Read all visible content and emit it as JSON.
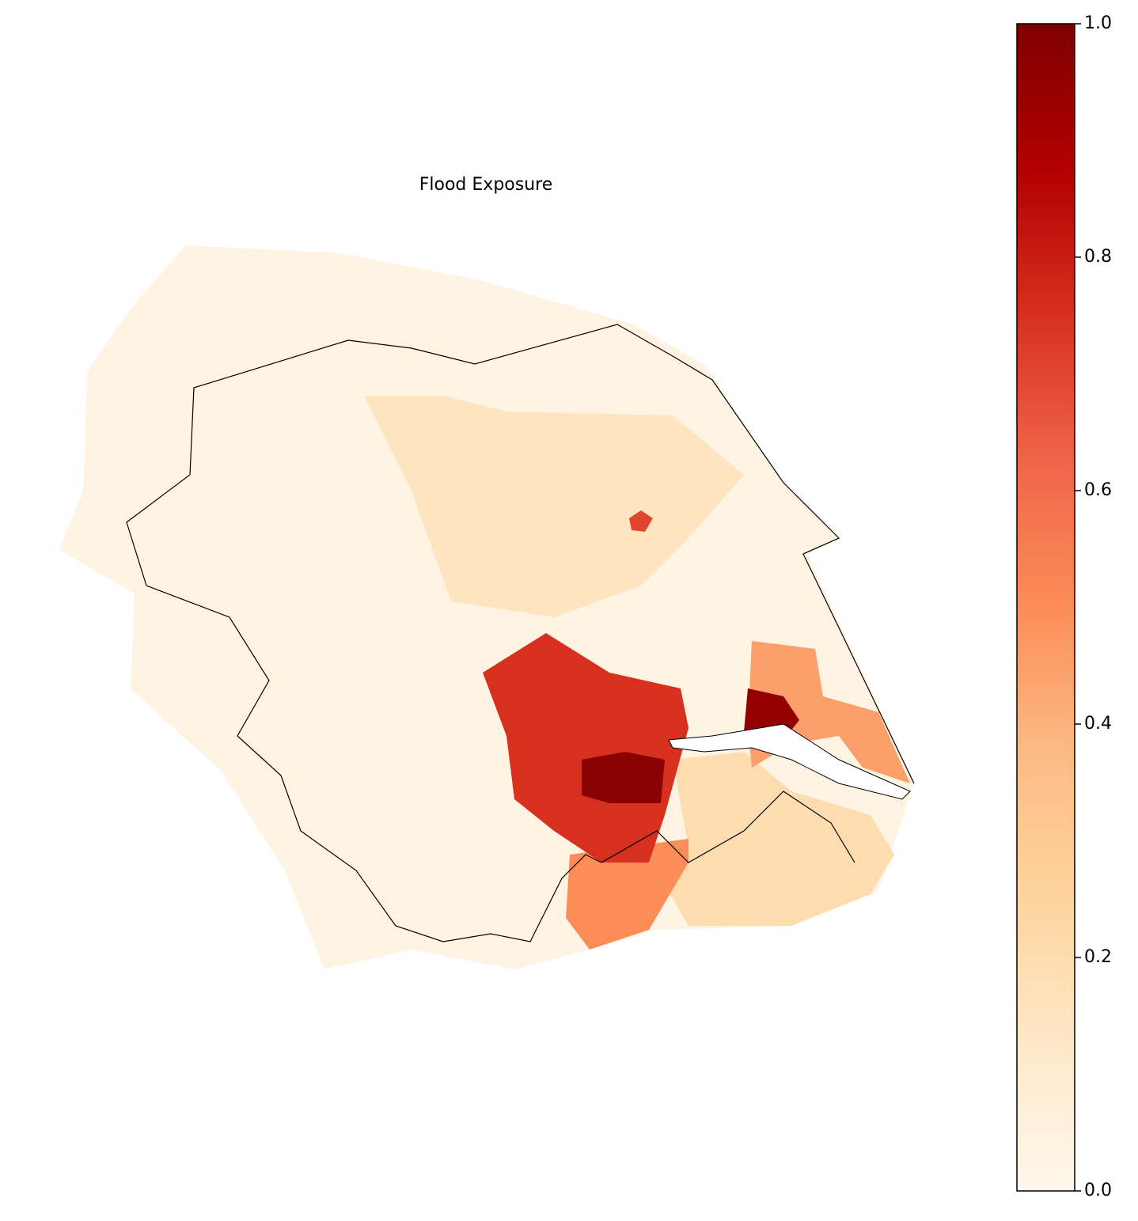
{
  "chart_data": {
    "type": "choropleth",
    "title": "Flood Exposure",
    "colormap": "OrRd",
    "values": [
      0.03,
      0.15,
      0.2,
      0.45,
      0.5,
      0.75,
      0.97,
      0.95,
      0.7
    ],
    "clim": [
      0,
      1
    ],
    "cticks": [
      {
        "value": 0,
        "label": "0.0"
      },
      {
        "value": 0.2,
        "label": "0.2"
      },
      {
        "value": 0.4,
        "label": "0.4"
      },
      {
        "value": 0.6,
        "label": "0.6"
      },
      {
        "value": 0.8,
        "label": "0.8"
      },
      {
        "value": 1,
        "label": "1.0"
      }
    ]
  }
}
